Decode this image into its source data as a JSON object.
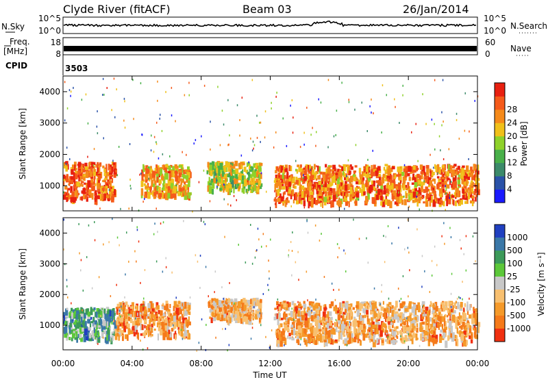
{
  "header": {
    "station": "Clyde River (fitACF)",
    "beam": "Beam 03",
    "date": "26/Jan/2014"
  },
  "top_panels": {
    "nsky_label": "N.Sky",
    "nsky_ticks": [
      "10^5",
      "10^0"
    ],
    "nsearch_label": "N.Search",
    "nsearch_ticks": [
      "10^5",
      "10^0"
    ],
    "freq_label_1": "Freq.",
    "freq_label_2": "[MHz]",
    "freq_ticks": [
      "18",
      "8"
    ],
    "nave_label": "Nave",
    "nave_ticks": [
      "60",
      "0"
    ],
    "cpid_label": "CPID",
    "cpid_value": "3503"
  },
  "chart_data": [
    {
      "type": "heatmap",
      "panel": "power",
      "ylabel": "Slant Range [km]",
      "yticks": [
        "1000",
        "2000",
        "3000",
        "4000"
      ],
      "ylim": [
        200,
        4500
      ],
      "xlim": [
        0,
        24
      ],
      "colorbar_label": "Power [dB]",
      "colorbar_ticks": [
        "4",
        "8",
        "12",
        "16",
        "20",
        "24",
        "28"
      ],
      "colorbar_colors": [
        "#1a1aff",
        "#2a52a8",
        "#3c8a6a",
        "#49b04a",
        "#8fd12a",
        "#f0c01a",
        "#f58a1a",
        "#f55a1a",
        "#e82010"
      ],
      "clusters": [
        {
          "t0": 0.0,
          "t1": 3.0,
          "r0": 600,
          "r1": 1800,
          "level": 0.85
        },
        {
          "t0": 4.5,
          "t1": 7.3,
          "r0": 700,
          "r1": 1700,
          "level": 0.7
        },
        {
          "t0": 8.3,
          "t1": 11.4,
          "r0": 900,
          "r1": 1800,
          "level": 0.55
        },
        {
          "t0": 12.2,
          "t1": 24.0,
          "r0": 500,
          "r1": 1700,
          "level": 0.8
        }
      ]
    },
    {
      "type": "heatmap",
      "panel": "velocity",
      "ylabel": "Slant Range [km]",
      "yticks": [
        "1000",
        "2000",
        "3000",
        "4000"
      ],
      "ylim": [
        200,
        4500
      ],
      "xlim": [
        0,
        24
      ],
      "xlabel": "Time UT",
      "xticks": [
        "00:00",
        "04:00",
        "08:00",
        "12:00",
        "16:00",
        "20:00",
        "00:00"
      ],
      "colorbar_label": "Velocity [m s⁻¹]",
      "colorbar_ticks": [
        "1000",
        "500",
        "100",
        "25",
        "-25",
        "-100",
        "-500",
        "-1000"
      ],
      "colorbar_colors": [
        "#2040c0",
        "#3a78a8",
        "#3c9a5a",
        "#5cc83a",
        "#c8c8c8",
        "#f8c070",
        "#f59a2a",
        "#f57a1a",
        "#f03010"
      ],
      "clusters": [
        {
          "t0": 0.0,
          "t1": 3.0,
          "r0": 600,
          "r1": 1600,
          "level": 0.3
        },
        {
          "t0": 3.0,
          "t1": 7.3,
          "r0": 700,
          "r1": 1800,
          "level": 0.75
        },
        {
          "t0": 8.3,
          "t1": 11.4,
          "r0": 1200,
          "r1": 1900,
          "level": 0.7
        },
        {
          "t0": 12.2,
          "t1": 24.0,
          "r0": 500,
          "r1": 1800,
          "level": 0.72
        }
      ]
    }
  ],
  "colors": {
    "grid": "#000000"
  }
}
